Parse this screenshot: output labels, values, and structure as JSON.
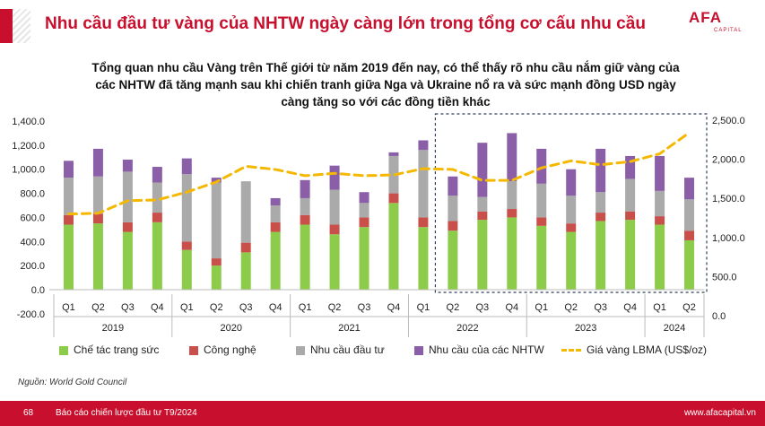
{
  "header": {
    "title": "Nhu cầu đầu tư vàng của NHTW ngày càng lớn trong tổng cơ cấu nhu cầu"
  },
  "logo": {
    "text": "AFA",
    "sub": "CAPITAL"
  },
  "subtitle_lines": [
    "Tổng quan nhu cầu Vàng trên Thế giới từ năm 2019 đến nay, có thể thấy rõ nhu cầu nắm giữ vàng của",
    "các NHTW đã tăng mạnh sau khi chiến tranh giữa Nga và Ukraine nổ ra và sức mạnh đồng USD ngày",
    "càng tăng so với các đồng tiền khác"
  ],
  "source": "Nguồn: World Gold Council",
  "footer": {
    "page": "68",
    "text": "Báo cáo chiến lược đầu tư T9/2024",
    "url": "www.afacapital.vn"
  },
  "chart_data": {
    "type": "bar",
    "stacked": true,
    "quarters": [
      "Q1",
      "Q2",
      "Q3",
      "Q4",
      "Q1",
      "Q2",
      "Q3",
      "Q4",
      "Q1",
      "Q2",
      "Q3",
      "Q4",
      "Q1",
      "Q2",
      "Q3",
      "Q4",
      "Q1",
      "Q2",
      "Q3",
      "Q4",
      "Q1",
      "Q2"
    ],
    "years": [
      {
        "label": "2019",
        "span": 4
      },
      {
        "label": "2020",
        "span": 4
      },
      {
        "label": "2021",
        "span": 4
      },
      {
        "label": "2022",
        "span": 4
      },
      {
        "label": "2023",
        "span": 4
      },
      {
        "label": "2024",
        "span": 2
      }
    ],
    "y_left": {
      "min": -200,
      "max": 1400,
      "ticks": [
        -200,
        0,
        200,
        400,
        600,
        800,
        1000,
        1200,
        1400
      ],
      "tick_labels": [
        "-200.0",
        "0.0",
        "200.0",
        "400.0",
        "600.0",
        "800.0",
        "1,000.0",
        "1,200.0",
        "1,400.0"
      ]
    },
    "y_right": {
      "min": 0,
      "max": 2500,
      "ticks": [
        0,
        500,
        1000,
        1500,
        2000,
        2500
      ],
      "tick_labels": [
        "0.0",
        "500.0",
        "1,000.0",
        "1,500.0",
        "2,000.0",
        "2,500.0"
      ]
    },
    "series": [
      {
        "name": "Chế tác trang sức",
        "color": "#8ccc4a",
        "axis": "left",
        "values": [
          540,
          550,
          480,
          560,
          330,
          200,
          310,
          480,
          540,
          460,
          520,
          720,
          520,
          490,
          580,
          600,
          530,
          480,
          570,
          580,
          540,
          410
        ]
      },
      {
        "name": "Công nghệ",
        "color": "#c9504a",
        "axis": "left",
        "values": [
          80,
          80,
          80,
          80,
          70,
          60,
          80,
          80,
          80,
          80,
          80,
          80,
          80,
          80,
          70,
          70,
          70,
          70,
          70,
          70,
          70,
          80
        ]
      },
      {
        "name": "Nhu cầu đầu tư",
        "color": "#aaaaaa",
        "axis": "left",
        "values": [
          310,
          310,
          420,
          250,
          560,
          630,
          510,
          140,
          140,
          290,
          120,
          310,
          560,
          210,
          120,
          230,
          280,
          230,
          170,
          270,
          210,
          260
        ]
      },
      {
        "name": "Nhu cầu của các NHTW",
        "color": "#8a5fa8",
        "axis": "left",
        "values": [
          140,
          230,
          100,
          130,
          130,
          40,
          0,
          60,
          150,
          200,
          90,
          30,
          80,
          160,
          450,
          400,
          290,
          220,
          360,
          190,
          290,
          180
        ]
      }
    ],
    "line": {
      "name": "Giá vàng LBMA (US$/oz)",
      "color": "#f5b800",
      "axis": "right",
      "values": [
        1300,
        1310,
        1470,
        1480,
        1580,
        1710,
        1910,
        1870,
        1790,
        1820,
        1790,
        1800,
        1880,
        1870,
        1730,
        1730,
        1890,
        1980,
        1930,
        1970,
        2070,
        2340
      ]
    },
    "highlight": {
      "from_index": 13,
      "to_index": 21
    }
  }
}
